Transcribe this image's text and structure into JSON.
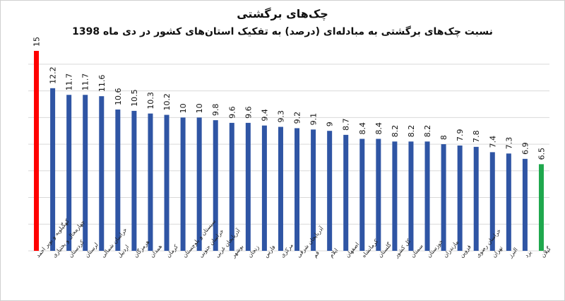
{
  "chart_data": {
    "type": "bar",
    "title": "چک‌های برگشتی",
    "subtitle": "نسبت چک‌های برگشتی به مبادله‌ای (درصد) به تفکیک استان‌های کشور در دی ماه 1398",
    "xlabel": "",
    "ylabel": "",
    "ylim": [
      0,
      15
    ],
    "grid": true,
    "categories": [
      "کهگیلویه و بویر احمد",
      "چهارمحال و بختیاری",
      "کردستان",
      "لرستان",
      "خراسان شمالی",
      "اردبیل",
      "هرمزگان",
      "همدان",
      "کرمان",
      "سیستان و بلوچستان",
      "خراسان جنوبی",
      "آذربایجان غربی",
      "بوشهر",
      "زنجان",
      "فارس",
      "مرکزی",
      "آذربایجان شرقی",
      "قم",
      "ایلام",
      "اصفهان",
      "کرمانشاه",
      "گلستان",
      "کل کشور",
      "سمنان",
      "خوزستان",
      "مازندران",
      "قزوین",
      "خراسان رضوی",
      "تهران",
      "البرز",
      "یزد",
      "گیلان"
    ],
    "values": [
      15,
      12.2,
      11.7,
      11.7,
      11.6,
      10.6,
      10.5,
      10.3,
      10.2,
      10,
      10,
      9.8,
      9.6,
      9.6,
      9.4,
      9.3,
      9.2,
      9.1,
      9,
      8.7,
      8.4,
      8.4,
      8.2,
      8.2,
      8.2,
      8,
      7.9,
      7.8,
      7.4,
      7.3,
      6.9,
      6.5
    ],
    "colors": {
      "default": "#2f55a4",
      "highest": "#ff0000",
      "lowest": "#1fa84d",
      "grid": "#d9d9d9"
    }
  }
}
